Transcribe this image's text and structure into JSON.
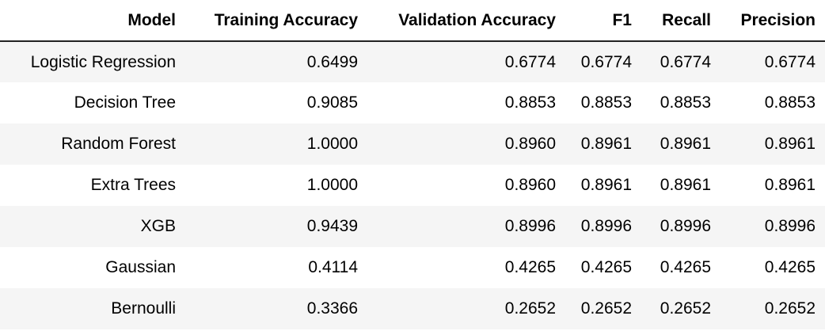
{
  "table": {
    "columns": [
      "Model",
      "Training Accuracy",
      "Validation Accuracy",
      "F1",
      "Recall",
      "Precision"
    ],
    "rows": [
      {
        "model": "Logistic Regression",
        "training_accuracy": "0.6499",
        "validation_accuracy": "0.6774",
        "f1": "0.6774",
        "recall": "0.6774",
        "precision": "0.6774"
      },
      {
        "model": "Decision Tree",
        "training_accuracy": "0.9085",
        "validation_accuracy": "0.8853",
        "f1": "0.8853",
        "recall": "0.8853",
        "precision": "0.8853"
      },
      {
        "model": "Random Forest",
        "training_accuracy": "1.0000",
        "validation_accuracy": "0.8960",
        "f1": "0.8961",
        "recall": "0.8961",
        "precision": "0.8961"
      },
      {
        "model": "Extra Trees",
        "training_accuracy": "1.0000",
        "validation_accuracy": "0.8960",
        "f1": "0.8961",
        "recall": "0.8961",
        "precision": "0.8961"
      },
      {
        "model": "XGB",
        "training_accuracy": "0.9439",
        "validation_accuracy": "0.8996",
        "f1": "0.8996",
        "recall": "0.8996",
        "precision": "0.8996"
      },
      {
        "model": "Gaussian",
        "training_accuracy": "0.4114",
        "validation_accuracy": "0.4265",
        "f1": "0.4265",
        "recall": "0.4265",
        "precision": "0.4265"
      },
      {
        "model": "Bernoulli",
        "training_accuracy": "0.3366",
        "validation_accuracy": "0.2652",
        "f1": "0.2652",
        "recall": "0.2652",
        "precision": "0.2652"
      }
    ]
  }
}
